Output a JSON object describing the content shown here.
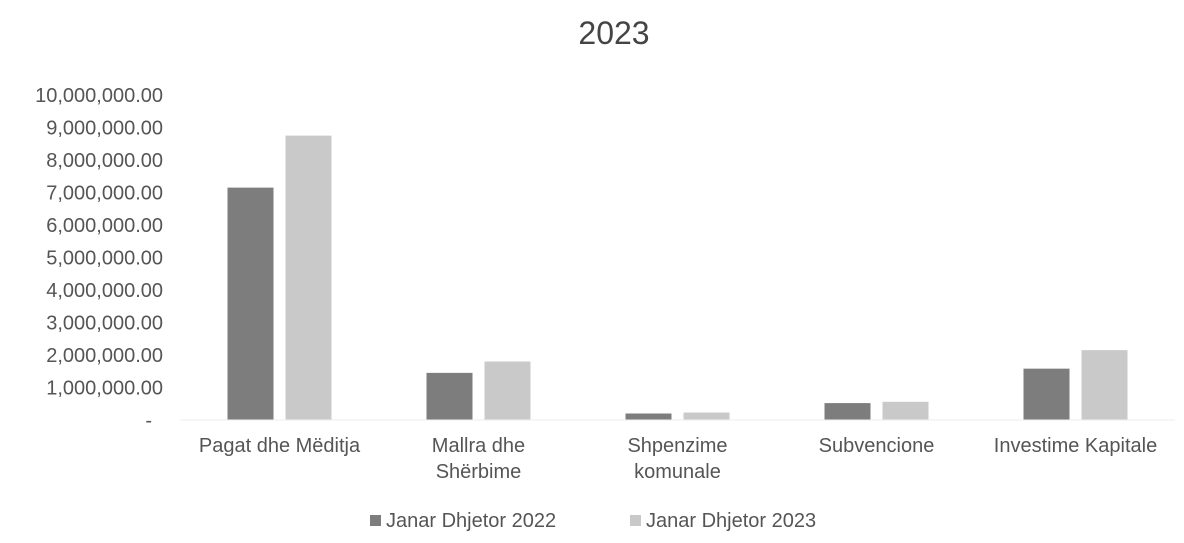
{
  "chart_data": {
    "type": "bar",
    "title": "2023",
    "xlabel": "",
    "ylabel": "",
    "ylim": [
      0,
      10000000
    ],
    "yticks": [
      {
        "value": 0,
        "label": "-"
      },
      {
        "value": 1000000,
        "label": "1,000,000.00"
      },
      {
        "value": 2000000,
        "label": "2,000,000.00"
      },
      {
        "value": 3000000,
        "label": "3,000,000.00"
      },
      {
        "value": 4000000,
        "label": "4,000,000.00"
      },
      {
        "value": 5000000,
        "label": "5,000,000.00"
      },
      {
        "value": 6000000,
        "label": "6,000,000.00"
      },
      {
        "value": 7000000,
        "label": "7,000,000.00"
      },
      {
        "value": 8000000,
        "label": "8,000,000.00"
      },
      {
        "value": 9000000,
        "label": "9,000,000.00"
      },
      {
        "value": 10000000,
        "label": "10,000,000.00"
      }
    ],
    "categories": [
      [
        "Pagat dhe Mëditja"
      ],
      [
        "Mallra dhe",
        "Shërbime"
      ],
      [
        "Shpenzime",
        "komunale"
      ],
      [
        "Subvencione"
      ],
      [
        "Investime Kapitale"
      ]
    ],
    "series": [
      {
        "name": "Janar Dhjetor 2022",
        "color": "#7d7d7d",
        "values": [
          7150000,
          1450000,
          200000,
          520000,
          1580000
        ]
      },
      {
        "name": "Janar Dhjetor 2023",
        "color": "#c9c9c9",
        "values": [
          8750000,
          1800000,
          230000,
          560000,
          2150000
        ]
      }
    ],
    "grid": false,
    "legend_position": "bottom-center"
  }
}
